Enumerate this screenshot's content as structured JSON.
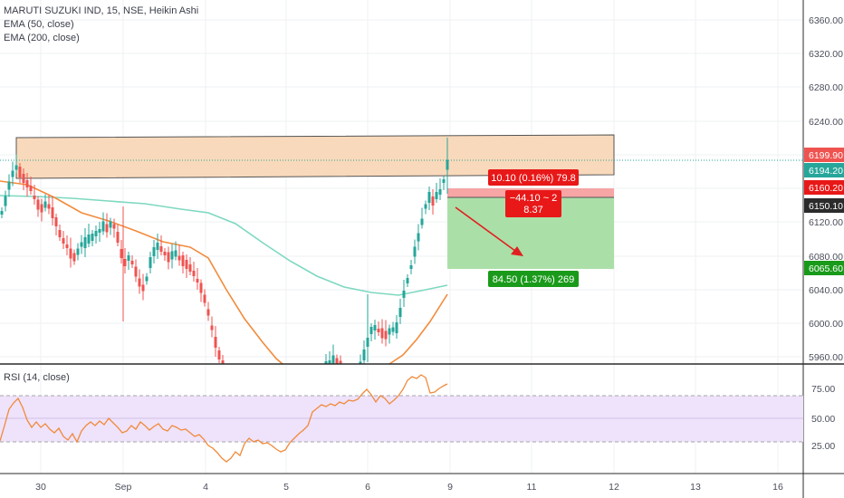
{
  "header": {
    "symbol_line": "MARUTI SUZUKI IND, 15, NSE, Heikin Ashi",
    "ema50": "EMA (50, close)",
    "ema200": "EMA (200, close)"
  },
  "rsi_pane": {
    "title": "RSI (14, close)"
  },
  "price_axis": {
    "ticks": [
      "6360.00",
      "6320.00",
      "6280.00",
      "6240.00",
      "6200.00",
      "6160.00",
      "6120.00",
      "6080.00",
      "6040.00",
      "6000.00",
      "5960.00"
    ],
    "tags": {
      "high": "6199.90",
      "last": "6194.20",
      "stop": "6160.20",
      "entry": "6150.10",
      "target": "6065.60"
    }
  },
  "rsi_axis": {
    "ticks": [
      "75.00",
      "50.00",
      "25.00"
    ]
  },
  "time_axis": {
    "ticks": [
      "30",
      "Sep",
      "4",
      "5",
      "6",
      "9",
      "11",
      "12",
      "13",
      "16"
    ]
  },
  "position": {
    "stop_label": "10.10 (0.16%) 79.8",
    "center_line1": "−44.10 ~ 2",
    "center_line2": "8.37",
    "target_label": "84.50 (1.37%) 269"
  },
  "colors": {
    "up": "#26a69a",
    "down": "#ef5350",
    "ema50": "#f28b3c",
    "ema200": "#7dd8c0",
    "zone_fill": "#f9d9bb",
    "stop_fill": "#f7a5a5",
    "target_fill": "#abdfa8",
    "rsi_line": "#f08a3a",
    "rsi_band": "#efe2fb"
  }
}
